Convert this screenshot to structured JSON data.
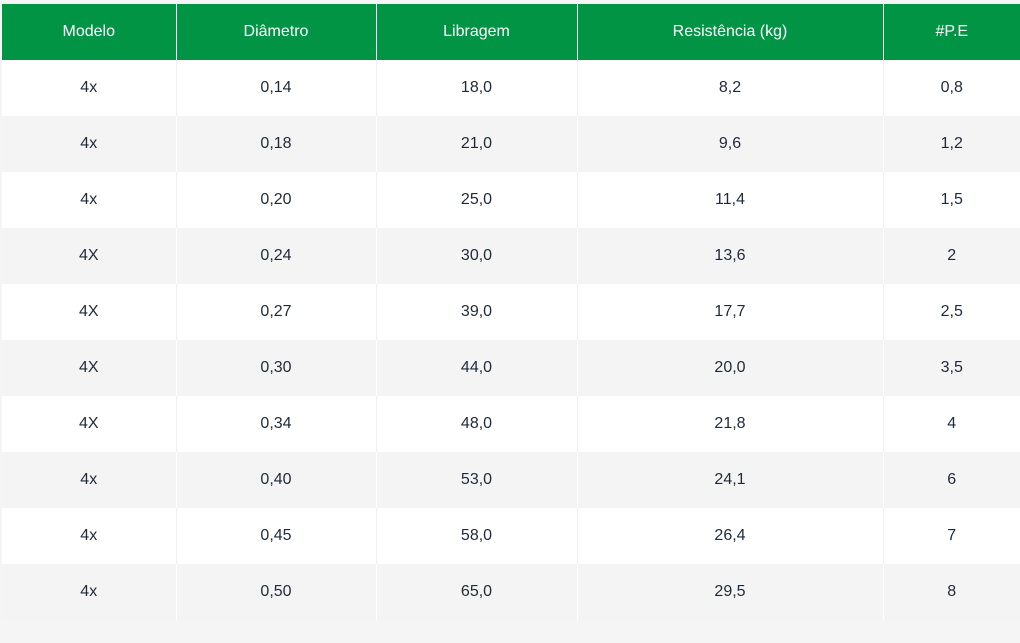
{
  "table": {
    "headers": [
      "Modelo",
      "Diâmetro",
      "Libragem",
      "Resistência (kg)",
      "#P.E"
    ],
    "rows": [
      [
        "4x",
        "0,14",
        "18,0",
        "8,2",
        "0,8"
      ],
      [
        "4x",
        "0,18",
        "21,0",
        "9,6",
        "1,2"
      ],
      [
        "4x",
        "0,20",
        "25,0",
        "11,4",
        "1,5"
      ],
      [
        "4X",
        "0,24",
        "30,0",
        "13,6",
        "2"
      ],
      [
        "4X",
        "0,27",
        "39,0",
        "17,7",
        "2,5"
      ],
      [
        "4X",
        "0,30",
        "44,0",
        "20,0",
        "3,5"
      ],
      [
        "4X",
        "0,34",
        "48,0",
        "21,8",
        "4"
      ],
      [
        "4x",
        "0,40",
        "53,0",
        "24,1",
        "6"
      ],
      [
        "4x",
        "0,45",
        "58,0",
        "26,4",
        "7"
      ],
      [
        "4x",
        "0,50",
        "65,0",
        "29,5",
        "8"
      ]
    ]
  },
  "colors": {
    "header_bg": "#019444",
    "header_text": "#ffffff",
    "row_alt_bg": "#f4f4f4",
    "cell_text": "#1e2a3a"
  }
}
